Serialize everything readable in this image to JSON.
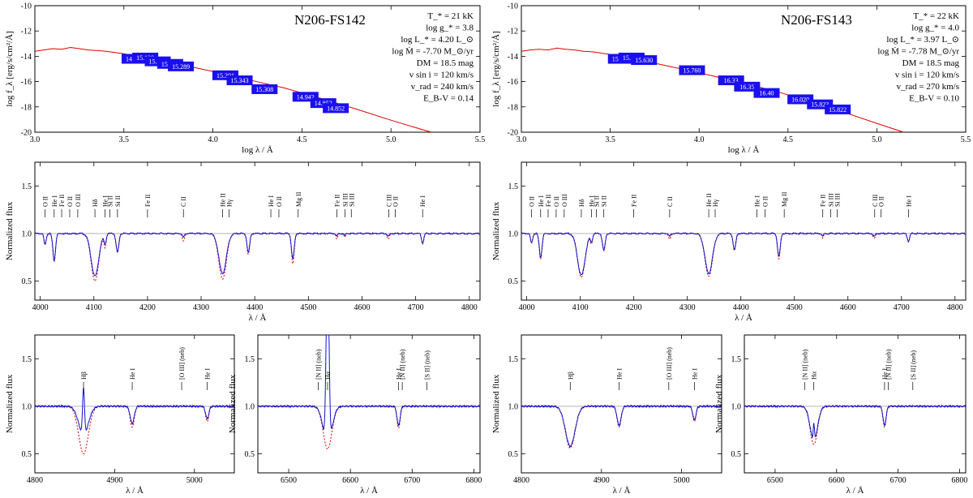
{
  "figure": {
    "stars": [
      {
        "name": "N206-FS142",
        "params": [
          "T_* = 21 kK",
          "log g_* = 3.8",
          "log L_* = 4.20 L_⊙",
          "log Ṁ = -7.70 M_⊙/yr",
          "DM = 18.5 mag",
          "v sin i = 120 km/s",
          "v_rad = 240 km/s",
          "E_B-V = 0.14"
        ]
      },
      {
        "name": "N206-FS143",
        "params": [
          "T_* = 22 kK",
          "log g_* = 4.0",
          "log L_* = 3.97 L_⊙",
          "log Ṁ = -7.78 M_⊙/yr",
          "DM = 18.5 mag",
          "v sin i = 120 km/s",
          "v_rad = 270 km/s",
          "E_B-V = 0.10"
        ]
      }
    ],
    "labels": {
      "sed_ylabel": "log f_λ [erg/s/cm²/Å]",
      "sed_xlabel": "log λ / Å",
      "flux_ylabel": "Normalized flux",
      "wave_xlabel": "λ / Å"
    },
    "colors": {
      "observed": "#1010cc",
      "model": "#e00000",
      "photometry": "#1a0ff0",
      "continuum": "#aaaaaa"
    }
  },
  "chart_data": [
    {
      "type": "line",
      "panel": "sed",
      "star": "N206-FS142",
      "xlabel": "log λ / Å",
      "ylabel": "log f_λ [erg/s/cm²/Å]",
      "xlim": [
        3.0,
        5.5
      ],
      "ylim": [
        -20,
        -10
      ],
      "xticks": [
        3.0,
        3.5,
        4.0,
        4.5,
        5.0,
        5.5
      ],
      "yticks": [
        -10,
        -12,
        -14,
        -16,
        -18,
        -20
      ],
      "series": [
        {
          "name": "model SED",
          "x": [
            3.0,
            3.05,
            3.1,
            3.15,
            3.2,
            3.25,
            3.3,
            3.35,
            3.4,
            3.5,
            3.6,
            3.8,
            4.0,
            4.2,
            4.4,
            4.6,
            4.8,
            5.0,
            5.2,
            5.23
          ],
          "y": [
            -13.6,
            -13.5,
            -13.4,
            -13.45,
            -13.3,
            -13.4,
            -13.5,
            -13.55,
            -13.6,
            -13.8,
            -14.05,
            -14.6,
            -15.2,
            -15.85,
            -16.5,
            -17.3,
            -18.15,
            -19.05,
            -19.9,
            -20.0
          ]
        }
      ],
      "photometry": [
        {
          "logl": 3.56,
          "label": "14.958",
          "value": -14.2
        },
        {
          "logl": 3.62,
          "label": "15.129",
          "value": -14.1
        },
        {
          "logl": 3.69,
          "label": "15.251",
          "value": -14.4
        },
        {
          "logl": 3.76,
          "label": "15.289",
          "value": -14.6
        },
        {
          "logl": 3.82,
          "label": "15.289",
          "value": -14.8
        },
        {
          "logl": 4.07,
          "label": "15.301",
          "value": -15.5
        },
        {
          "logl": 4.15,
          "label": "15.343",
          "value": -15.9
        },
        {
          "logl": 4.29,
          "label": "15.308",
          "value": -16.6
        },
        {
          "logl": 4.52,
          "label": "14.942",
          "value": -17.2
        },
        {
          "logl": 4.62,
          "label": "14.852",
          "value": -17.7
        },
        {
          "logl": 4.69,
          "label": "14.852",
          "value": -18.1
        }
      ]
    },
    {
      "type": "line",
      "panel": "sed",
      "star": "N206-FS143",
      "xlabel": "log λ / Å",
      "ylabel": "log f_λ [erg/s/cm²/Å]",
      "xlim": [
        3.0,
        5.5
      ],
      "ylim": [
        -20,
        -10
      ],
      "xticks": [
        3.0,
        3.5,
        4.0,
        4.5,
        5.0,
        5.5
      ],
      "yticks": [
        -10,
        -12,
        -14,
        -16,
        -18,
        -20
      ],
      "series": [
        {
          "name": "model SED",
          "x": [
            3.0,
            3.05,
            3.1,
            3.15,
            3.2,
            3.25,
            3.3,
            3.35,
            3.4,
            3.5,
            3.6,
            3.8,
            4.0,
            4.2,
            4.4,
            4.6,
            4.8,
            5.0,
            5.15
          ],
          "y": [
            -13.6,
            -13.5,
            -13.45,
            -13.5,
            -13.35,
            -13.45,
            -13.5,
            -13.6,
            -13.65,
            -13.85,
            -14.1,
            -14.7,
            -15.3,
            -15.95,
            -16.65,
            -17.45,
            -18.35,
            -19.3,
            -20.0
          ]
        }
      ],
      "photometry": [
        {
          "logl": 3.56,
          "label": "15.523",
          "value": -14.2
        },
        {
          "logl": 3.62,
          "label": "15.571",
          "value": -14.1
        },
        {
          "logl": 3.69,
          "label": "15.630",
          "value": -14.3
        },
        {
          "logl": 3.96,
          "label": "15.760",
          "value": -15.1
        },
        {
          "logl": 4.18,
          "label": "16.33",
          "value": -15.9
        },
        {
          "logl": 4.27,
          "label": "16.35",
          "value": -16.4
        },
        {
          "logl": 4.38,
          "label": "16.40",
          "value": -16.9
        },
        {
          "logl": 4.57,
          "label": "16.020",
          "value": -17.4
        },
        {
          "logl": 4.68,
          "label": "15.823",
          "value": -17.8
        },
        {
          "logl": 4.78,
          "label": "15.822",
          "value": -18.2
        }
      ]
    },
    {
      "type": "line",
      "panel": "blue-optical",
      "star": "N206-FS142",
      "xlabel": "λ / Å",
      "ylabel": "Normalized flux",
      "xlim": [
        3990,
        4820
      ],
      "ylim": [
        0.3,
        1.75
      ],
      "xticks": [
        4000,
        4100,
        4200,
        4300,
        4400,
        4500,
        4600,
        4700,
        4800
      ],
      "yticks": [
        0.5,
        1.0,
        1.5
      ],
      "continuum": 1.0,
      "lines": [
        {
          "center": 4009,
          "depth": 0.12,
          "width": 2,
          "model_depth": 0.12
        },
        {
          "center": 4026,
          "depth": 0.28,
          "width": 2.5,
          "model_depth": 0.3
        },
        {
          "center": 4102,
          "depth": 0.45,
          "width": 7,
          "model_depth": 0.5
        },
        {
          "center": 4121,
          "depth": 0.1,
          "width": 2,
          "model_depth": 0.14
        },
        {
          "center": 4144,
          "depth": 0.2,
          "width": 2.5,
          "model_depth": 0.2
        },
        {
          "center": 4267,
          "depth": 0.04,
          "width": 2,
          "model_depth": 0.08
        },
        {
          "center": 4340,
          "depth": 0.42,
          "width": 7,
          "model_depth": 0.48
        },
        {
          "center": 4388,
          "depth": 0.2,
          "width": 2.5,
          "model_depth": 0.22
        },
        {
          "center": 4471,
          "depth": 0.27,
          "width": 2.5,
          "model_depth": 0.32
        },
        {
          "center": 4553,
          "depth": 0.03,
          "width": 1.5,
          "model_depth": 0.06
        },
        {
          "center": 4568,
          "depth": 0.02,
          "width": 1.5,
          "model_depth": 0.04
        },
        {
          "center": 4649,
          "depth": 0.03,
          "width": 2,
          "model_depth": 0.06
        },
        {
          "center": 4713,
          "depth": 0.1,
          "width": 2,
          "model_depth": 0.11
        }
      ],
      "line_ids": [
        {
          "wave": 4009,
          "label": "O II"
        },
        {
          "wave": 4026,
          "label": "He I"
        },
        {
          "wave": 4040,
          "label": "Fe II"
        },
        {
          "wave": 4055,
          "label": "O II"
        },
        {
          "wave": 4070,
          "label": "O III"
        },
        {
          "wave": 4102,
          "label": "Hδ"
        },
        {
          "wave": 4121,
          "label": "He I"
        },
        {
          "wave": 4130,
          "label": "Si II"
        },
        {
          "wave": 4144,
          "label": "Si II"
        },
        {
          "wave": 4200,
          "label": "Fe II"
        },
        {
          "wave": 4267,
          "label": "C II"
        },
        {
          "wave": 4340,
          "label": "He II"
        },
        {
          "wave": 4352,
          "label": "Hγ"
        },
        {
          "wave": 4430,
          "label": "He I"
        },
        {
          "wave": 4445,
          "label": "O II"
        },
        {
          "wave": 4481,
          "label": "Mg II"
        },
        {
          "wave": 4553,
          "label": "Fe II"
        },
        {
          "wave": 4568,
          "label": "Si III"
        },
        {
          "wave": 4580,
          "label": "Si III"
        },
        {
          "wave": 4650,
          "label": "C III"
        },
        {
          "wave": 4662,
          "label": "O II"
        },
        {
          "wave": 4713,
          "label": "He I"
        }
      ]
    },
    {
      "type": "line",
      "panel": "blue-optical",
      "star": "N206-FS143",
      "xlabel": "λ / Å",
      "ylabel": "Normalized flux",
      "xlim": [
        3990,
        4820
      ],
      "ylim": [
        0.3,
        1.75
      ],
      "xticks": [
        4000,
        4100,
        4200,
        4300,
        4400,
        4500,
        4600,
        4700,
        4800
      ],
      "yticks": [
        0.5,
        1.0,
        1.5
      ],
      "continuum": 1.0,
      "lines": [
        {
          "center": 4009,
          "depth": 0.1,
          "width": 2,
          "model_depth": 0.1
        },
        {
          "center": 4026,
          "depth": 0.25,
          "width": 2.5,
          "model_depth": 0.27
        },
        {
          "center": 4102,
          "depth": 0.44,
          "width": 7,
          "model_depth": 0.46
        },
        {
          "center": 4121,
          "depth": 0.08,
          "width": 2,
          "model_depth": 0.1
        },
        {
          "center": 4144,
          "depth": 0.18,
          "width": 2.5,
          "model_depth": 0.18
        },
        {
          "center": 4267,
          "depth": 0.03,
          "width": 2,
          "model_depth": 0.06
        },
        {
          "center": 4340,
          "depth": 0.42,
          "width": 7,
          "model_depth": 0.45
        },
        {
          "center": 4388,
          "depth": 0.17,
          "width": 2.5,
          "model_depth": 0.18
        },
        {
          "center": 4471,
          "depth": 0.24,
          "width": 2.5,
          "model_depth": 0.27
        },
        {
          "center": 4553,
          "depth": 0.03,
          "width": 1.5,
          "model_depth": 0.05
        },
        {
          "center": 4649,
          "depth": 0.03,
          "width": 2,
          "model_depth": 0.05
        },
        {
          "center": 4713,
          "depth": 0.08,
          "width": 2,
          "model_depth": 0.09
        }
      ],
      "line_ids": [
        {
          "wave": 4009,
          "label": "O II"
        },
        {
          "wave": 4026,
          "label": "He I"
        },
        {
          "wave": 4040,
          "label": "Fe II"
        },
        {
          "wave": 4055,
          "label": "O II"
        },
        {
          "wave": 4070,
          "label": "O III"
        },
        {
          "wave": 4102,
          "label": "Hδ"
        },
        {
          "wave": 4121,
          "label": "He I"
        },
        {
          "wave": 4130,
          "label": "Si II"
        },
        {
          "wave": 4144,
          "label": "Si II"
        },
        {
          "wave": 4200,
          "label": "Fe II"
        },
        {
          "wave": 4267,
          "label": "C II"
        },
        {
          "wave": 4340,
          "label": "He II"
        },
        {
          "wave": 4352,
          "label": "Hγ"
        },
        {
          "wave": 4430,
          "label": "He I"
        },
        {
          "wave": 4445,
          "label": "O II"
        },
        {
          "wave": 4481,
          "label": "Mg II"
        },
        {
          "wave": 4553,
          "label": "Fe II"
        },
        {
          "wave": 4568,
          "label": "Si III"
        },
        {
          "wave": 4580,
          "label": "Si III"
        },
        {
          "wave": 4650,
          "label": "C III"
        },
        {
          "wave": 4662,
          "label": "O II"
        },
        {
          "wave": 4713,
          "label": "He I"
        }
      ]
    },
    {
      "type": "line",
      "panel": "hbeta",
      "star": "N206-FS142",
      "xlabel": "λ / Å",
      "ylabel": "Normalized flux",
      "xlim": [
        4800,
        5050
      ],
      "ylim": [
        0.3,
        1.75
      ],
      "xticks": [
        4800,
        4900,
        5000
      ],
      "yticks": [
        0.5,
        1.0,
        1.5
      ],
      "continuum": 1.0,
      "lines": [
        {
          "center": 4861,
          "depth": 0.3,
          "width": 6,
          "model_depth": 0.5,
          "emission": 0.5,
          "emission_width": 1.2
        },
        {
          "center": 4922,
          "depth": 0.18,
          "width": 2.5,
          "model_depth": 0.22
        },
        {
          "center": 5016,
          "depth": 0.13,
          "width": 2,
          "model_depth": 0.16
        }
      ],
      "line_ids": [
        {
          "wave": 4861,
          "label": "Hβ"
        },
        {
          "wave": 4922,
          "label": "He I"
        },
        {
          "wave": 4984,
          "label": "[O III] (neb)"
        },
        {
          "wave": 5016,
          "label": "He I"
        }
      ]
    },
    {
      "type": "line",
      "panel": "halpha",
      "star": "N206-FS142",
      "xlabel": "λ / Å",
      "ylabel": "Normalized flux",
      "xlim": [
        6450,
        6810
      ],
      "ylim": [
        0.3,
        1.75
      ],
      "xticks": [
        6500,
        6600,
        6700,
        6800
      ],
      "yticks": [
        0.5,
        1.0,
        1.5
      ],
      "continuum": 1.0,
      "lines": [
        {
          "center": 6563,
          "depth": 0.4,
          "width": 7,
          "model_depth": 0.45,
          "emission": 2.0,
          "emission_width": 2.2
        },
        {
          "center": 6678,
          "depth": 0.2,
          "width": 2.5,
          "model_depth": 0.23
        }
      ],
      "line_ids": [
        {
          "wave": 6548,
          "label": "[N II] (neb)"
        },
        {
          "wave": 6563,
          "label": "Hα"
        },
        {
          "wave": 6678,
          "label": "He I"
        },
        {
          "wave": 6684,
          "label": "[N II] (neb)"
        },
        {
          "wave": 6724,
          "label": "[S II] (neb)"
        }
      ]
    },
    {
      "type": "line",
      "panel": "hbeta",
      "star": "N206-FS143",
      "xlabel": "λ / Å",
      "ylabel": "Normalized flux",
      "xlim": [
        4800,
        5050
      ],
      "ylim": [
        0.3,
        1.75
      ],
      "xticks": [
        4800,
        4900,
        5000
      ],
      "yticks": [
        0.5,
        1.0,
        1.5
      ],
      "continuum": 1.0,
      "lines": [
        {
          "center": 4861,
          "depth": 0.42,
          "width": 6,
          "model_depth": 0.44
        },
        {
          "center": 4922,
          "depth": 0.2,
          "width": 2.5,
          "model_depth": 0.22
        },
        {
          "center": 5016,
          "depth": 0.14,
          "width": 2,
          "model_depth": 0.16
        }
      ],
      "line_ids": [
        {
          "wave": 4861,
          "label": "Hβ"
        },
        {
          "wave": 4922,
          "label": "He I"
        },
        {
          "wave": 4984,
          "label": "[O III] (neb)"
        },
        {
          "wave": 5016,
          "label": "He I"
        }
      ]
    },
    {
      "type": "line",
      "panel": "halpha",
      "star": "N206-FS143",
      "xlabel": "λ / Å",
      "ylabel": "Normalized flux",
      "xlim": [
        6450,
        6810
      ],
      "ylim": [
        0.3,
        1.75
      ],
      "xticks": [
        6500,
        6600,
        6700,
        6800
      ],
      "yticks": [
        0.5,
        1.0,
        1.5
      ],
      "continuum": 1.0,
      "lines": [
        {
          "center": 6563,
          "depth": 0.36,
          "width": 6,
          "model_depth": 0.4,
          "emission": 0.18,
          "emission_width": 1.0
        },
        {
          "center": 6678,
          "depth": 0.2,
          "width": 2.5,
          "model_depth": 0.22
        }
      ],
      "line_ids": [
        {
          "wave": 6548,
          "label": "[N II] (neb)"
        },
        {
          "wave": 6563,
          "label": "Hα"
        },
        {
          "wave": 6678,
          "label": "He I"
        },
        {
          "wave": 6684,
          "label": "[N II] (neb)"
        },
        {
          "wave": 6724,
          "label": "[S II] (neb)"
        }
      ]
    }
  ]
}
